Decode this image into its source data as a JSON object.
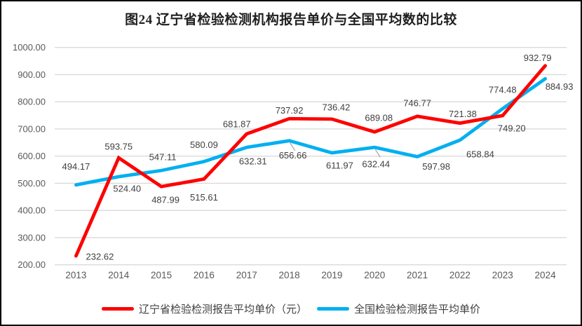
{
  "title": "图24 辽宁省检验检测机构报告单价与全国平均数的比较",
  "chart_data": {
    "type": "line",
    "title": "图24 辽宁省检验检测机构报告单价与全国平均数的比较",
    "categories": [
      "2013",
      "2014",
      "2015",
      "2016",
      "2017",
      "2018",
      "2019",
      "2020",
      "2021",
      "2022",
      "2023",
      "2024"
    ],
    "series": [
      {
        "name": "全国检验检测报告平均单价",
        "color": "#00B0F0",
        "values": [
          494.17,
          524.4,
          547.11,
          580.09,
          632.31,
          656.66,
          611.97,
          632.44,
          597.98,
          658.84,
          774.48,
          884.93
        ],
        "label_offsets": [
          [
            0,
            -26
          ],
          [
            12,
            17
          ],
          [
            2,
            -19
          ],
          [
            0,
            -24
          ],
          [
            9,
            20
          ],
          [
            5,
            21
          ],
          [
            11,
            18
          ],
          [
            2,
            24
          ],
          [
            27,
            14
          ],
          [
            29,
            20
          ],
          [
            0,
            -27
          ],
          [
            20,
            11
          ]
        ],
        "leader_line_points": [
          5,
          7
        ]
      },
      {
        "name": "辽宁省检验检测报告平均单价（元）",
        "color": "#FF0000",
        "values": [
          232.62,
          593.75,
          487.99,
          515.61,
          681.87,
          737.92,
          736.42,
          689.08,
          746.77,
          721.38,
          749.2,
          932.79
        ],
        "label_offsets": [
          [
            34,
            1
          ],
          [
            0,
            -16
          ],
          [
            6,
            19
          ],
          [
            0,
            26
          ],
          [
            -14,
            -14
          ],
          [
            0,
            -12
          ],
          [
            6,
            -17
          ],
          [
            6,
            -20
          ],
          [
            0,
            -19
          ],
          [
            4,
            -13
          ],
          [
            13,
            18
          ],
          [
            -11,
            -11
          ]
        ],
        "leader_line_points": []
      }
    ],
    "legend_order": [
      1,
      0
    ],
    "ylim": [
      200,
      1000
    ],
    "ytick_step": 100,
    "decimals": 2,
    "grid": true,
    "legend_position": "bottom",
    "colors": {
      "gridline": "#DADADA",
      "axis_tick_label": "#595959",
      "data_label": "#404040",
      "leader_line": "#A6A6A6",
      "title": "#1F1F1F",
      "legend_label": "#404040",
      "frame_border": "#000000",
      "background": "#FFFFFF"
    }
  }
}
